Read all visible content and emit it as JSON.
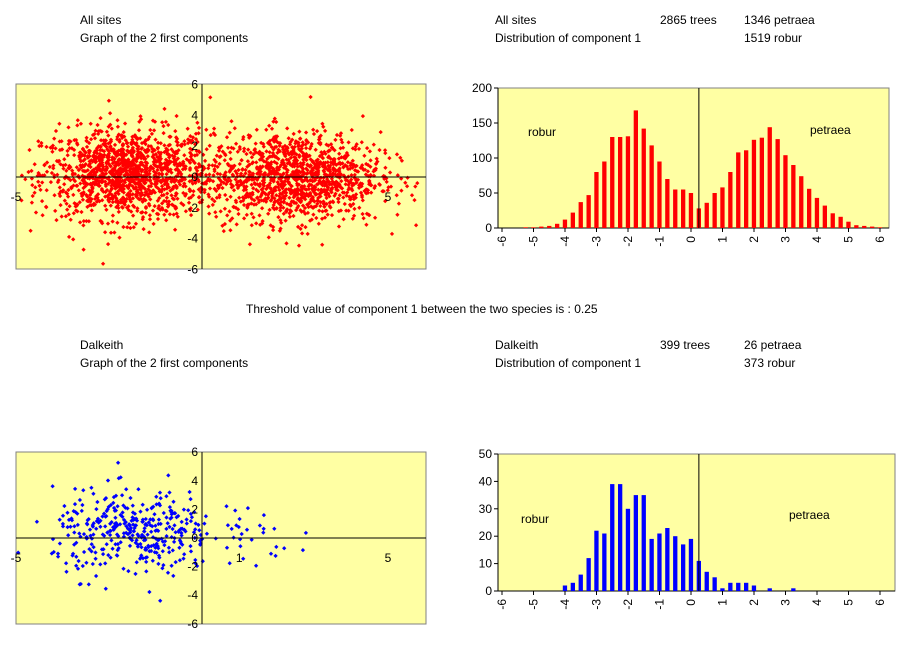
{
  "threshold_text": "Threshold value of component 1 between the two species is : 0.25",
  "panels": [
    {
      "site": "All sites",
      "scatter_title": "Graph of the 2 first components",
      "dist_title": "Distribution of component 1",
      "trees": "2865 trees",
      "petraea": "1346 petraea",
      "robur": "1519 robur",
      "label_robur": "robur",
      "label_petraea": "petraea"
    },
    {
      "site": "Dalkeith",
      "scatter_title": "Graph of the 2 first components",
      "dist_title": "Distribution of component 1",
      "trees": "399 trees",
      "petraea": "26 petraea",
      "robur": "373 robur",
      "label_robur": "robur",
      "label_petraea": "petraea"
    }
  ],
  "colors": {
    "plot_bg": "#ffffa3",
    "red_series": "#ff0000",
    "blue_series": "#0000ff"
  },
  "chart_data": [
    {
      "type": "scatter",
      "panel": "All sites",
      "xlim": [
        -5,
        6.2
      ],
      "ylim": [
        -6,
        6
      ],
      "x_tick_labels": [
        "-5",
        "5"
      ],
      "y_tick_labels": [
        "6",
        "4",
        "2",
        "0",
        "-2",
        "-4",
        "-6"
      ],
      "color": "#ff0000",
      "clusters": [
        {
          "x_mean": -2.0,
          "x_sd": 1.15,
          "y_mean": 0.2,
          "y_sd": 1.45,
          "n": 1350
        },
        {
          "x_mean": 2.5,
          "x_sd": 1.15,
          "y_mean": 0.0,
          "y_sd": 1.45,
          "n": 1250
        }
      ]
    },
    {
      "type": "bar",
      "panel": "All sites",
      "ylim": [
        0,
        200
      ],
      "y_ticks": [
        0,
        50,
        100,
        150,
        200
      ],
      "x_tick_labels": [
        "-6",
        "-5",
        "-4",
        "-3",
        "-2",
        "-1",
        "0",
        "1",
        "2",
        "3",
        "4",
        "5",
        "6"
      ],
      "threshold_x": 0.25,
      "bin_width": 0.25,
      "x": [
        -5.25,
        -5,
        -4.75,
        -4.5,
        -4.25,
        -4,
        -3.75,
        -3.5,
        -3.25,
        -3,
        -2.75,
        -2.5,
        -2.25,
        -2,
        -1.75,
        -1.5,
        -1.25,
        -1,
        -0.75,
        -0.5,
        -0.25,
        0,
        0.25,
        0.5,
        0.75,
        1,
        1.25,
        1.5,
        1.75,
        2,
        2.25,
        2.5,
        2.75,
        3,
        3.25,
        3.5,
        3.75,
        4,
        4.25,
        4.5,
        4.75,
        5,
        5.25,
        5.5,
        5.75,
        6
      ],
      "values": [
        1,
        1,
        2,
        3,
        6,
        12,
        22,
        37,
        47,
        80,
        95,
        130,
        130,
        131,
        168,
        142,
        118,
        95,
        70,
        55,
        55,
        50,
        28,
        36,
        50,
        58,
        80,
        108,
        111,
        126,
        129,
        144,
        127,
        104,
        90,
        74,
        56,
        43,
        32,
        21,
        16,
        9,
        4,
        3,
        2,
        1
      ],
      "color": "#ff0000"
    },
    {
      "type": "scatter",
      "panel": "Dalkeith",
      "xlim": [
        -5,
        6.2
      ],
      "ylim": [
        -6,
        6
      ],
      "x_tick_labels": [
        "-5",
        "1",
        "5"
      ],
      "y_tick_labels": [
        "6",
        "4",
        "2",
        "0",
        "-2",
        "-4",
        "-6"
      ],
      "color": "#0000ff",
      "clusters": [
        {
          "x_mean": -1.8,
          "x_sd": 1.1,
          "y_mean": 0.3,
          "y_sd": 1.5,
          "n": 373
        },
        {
          "x_mean": 1.3,
          "x_sd": 0.8,
          "y_mean": 0.8,
          "y_sd": 1.3,
          "n": 26
        }
      ]
    },
    {
      "type": "bar",
      "panel": "Dalkeith",
      "ylim": [
        0,
        50
      ],
      "y_ticks": [
        0,
        10,
        20,
        30,
        40,
        50
      ],
      "x_tick_labels": [
        "-6",
        "-5",
        "-4",
        "-3",
        "-2",
        "-1",
        "0",
        "1",
        "2",
        "3",
        "4",
        "5",
        "6"
      ],
      "threshold_x": 0.25,
      "bin_width": 0.25,
      "x": [
        -4,
        -3.75,
        -3.5,
        -3.25,
        -3,
        -2.75,
        -2.5,
        -2.25,
        -2,
        -1.75,
        -1.5,
        -1.25,
        -1,
        -0.75,
        -0.5,
        -0.25,
        0,
        0.25,
        0.5,
        0.75,
        1,
        1.25,
        1.5,
        1.75,
        2,
        2.5,
        3.25
      ],
      "values": [
        2,
        3,
        6,
        12,
        22,
        21,
        39,
        39,
        30,
        35,
        35,
        19,
        21,
        23,
        20,
        17,
        19,
        11,
        7,
        5,
        1,
        3,
        3,
        3,
        2,
        1,
        1
      ],
      "color": "#0000ff"
    }
  ]
}
